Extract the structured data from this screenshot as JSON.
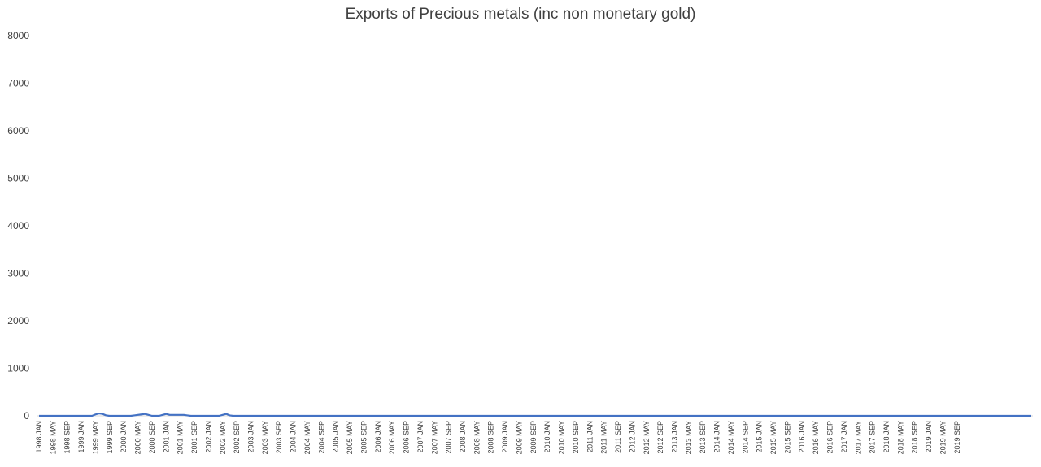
{
  "chart_data": {
    "type": "line",
    "title": "Exports of Precious metals (inc non monetary gold)",
    "xlabel": "",
    "ylabel": "",
    "ylim": [
      0,
      8000
    ],
    "y_ticks": [
      0,
      1000,
      2000,
      3000,
      4000,
      5000,
      6000,
      7000,
      8000
    ],
    "grid": false,
    "legend": "none",
    "line_color": "#4472c4",
    "x_start": "1998 JAN",
    "x_tick_labels": [
      "1998 JAN",
      "1998 MAY",
      "1998 SEP",
      "1999 JAN",
      "1999 MAY",
      "1999 SEP",
      "2000 JAN",
      "2000 MAY",
      "2000 SEP",
      "2001 JAN",
      "2001 MAY",
      "2001 SEP",
      "2002 JAN",
      "2002 MAY",
      "2002 SEP",
      "2003 JAN",
      "2003 MAY",
      "2003 SEP",
      "2004 JAN",
      "2004 MAY",
      "2004 SEP",
      "2005 JAN",
      "2005 MAY",
      "2005 SEP",
      "2006 JAN",
      "2006 MAY",
      "2006 SEP",
      "2007 JAN",
      "2007 MAY",
      "2007 SEP",
      "2008 JAN",
      "2008 MAY",
      "2008 SEP",
      "2009 JAN",
      "2009 MAY",
      "2009 SEP",
      "2010 JAN",
      "2010 MAY",
      "2010 SEP",
      "2011 JAN",
      "2011 MAY",
      "2011 SEP",
      "2012 JAN",
      "2012 MAY",
      "2012 SEP",
      "2013 JAN",
      "2013 MAY",
      "2013 SEP",
      "2014 JAN",
      "2014 MAY",
      "2014 SEP",
      "2015 JAN",
      "2015 MAY",
      "2015 SEP",
      "2016 JAN",
      "2016 MAY",
      "2016 SEP",
      "2017 JAN",
      "2017 MAY",
      "2017 SEP",
      "2018 JAN",
      "2018 MAY",
      "2018 SEP",
      "2019 JAN",
      "2019 MAY",
      "2019 SEP"
    ],
    "series": [
      {
        "values": [
          0,
          0,
          0,
          0,
          0,
          0,
          0,
          0,
          0,
          0,
          0,
          0,
          0,
          0,
          0,
          0,
          30,
          50,
          40,
          10,
          0,
          0,
          0,
          0,
          0,
          0,
          0,
          10,
          20,
          30,
          40,
          20,
          0,
          0,
          0,
          20,
          40,
          20,
          20,
          20,
          20,
          20,
          10,
          0,
          0,
          0,
          0,
          0,
          0,
          0,
          0,
          0,
          20,
          40,
          10,
          0,
          0,
          0,
          0,
          0,
          0,
          0,
          0,
          0,
          0,
          0,
          0,
          0,
          0,
          0,
          0,
          0,
          0,
          0,
          0,
          0,
          0,
          0,
          0,
          0,
          0,
          0,
          0,
          0,
          0,
          0,
          0,
          0,
          0,
          0,
          0,
          0,
          0,
          0,
          0,
          0,
          0,
          0,
          0,
          0,
          0,
          0,
          0,
          0,
          0,
          0,
          0,
          0,
          0,
          0,
          0,
          0,
          0,
          0,
          0,
          0,
          0,
          0,
          0,
          0,
          0,
          0,
          0,
          0,
          0,
          0,
          0,
          0,
          0,
          0,
          0,
          0,
          0,
          0,
          0,
          0,
          0,
          0,
          0,
          0,
          0,
          0,
          0,
          0,
          0,
          0,
          0,
          0,
          0,
          0,
          0,
          0,
          0,
          0,
          0,
          0,
          0,
          0,
          0,
          0,
          0,
          0,
          0,
          0,
          0,
          0,
          0,
          0,
          0,
          0,
          0,
          0,
          0,
          0,
          0,
          0,
          0,
          0,
          0,
          0,
          0,
          0,
          0,
          0,
          0,
          0,
          0,
          0,
          0,
          0,
          0,
          0,
          0,
          0,
          0,
          0,
          0,
          0,
          0,
          0,
          0,
          0,
          0,
          0,
          0,
          0,
          0,
          0,
          0,
          0,
          0,
          0,
          0,
          0,
          0,
          0,
          0,
          0,
          0,
          0,
          0,
          0,
          0,
          0,
          0,
          0,
          0,
          0,
          0,
          0,
          0,
          0,
          0,
          0,
          0,
          0,
          0,
          0,
          0,
          0,
          0,
          0,
          0,
          0,
          0,
          0,
          0,
          0,
          0,
          0,
          0,
          0,
          0,
          0,
          0,
          0,
          0,
          0,
          0,
          0,
          0,
          0,
          0,
          0,
          0,
          0,
          0,
          0,
          0,
          0,
          0,
          0,
          0,
          0,
          0,
          0,
          0,
          0,
          0,
          0,
          0,
          0
        ]
      }
    ]
  }
}
